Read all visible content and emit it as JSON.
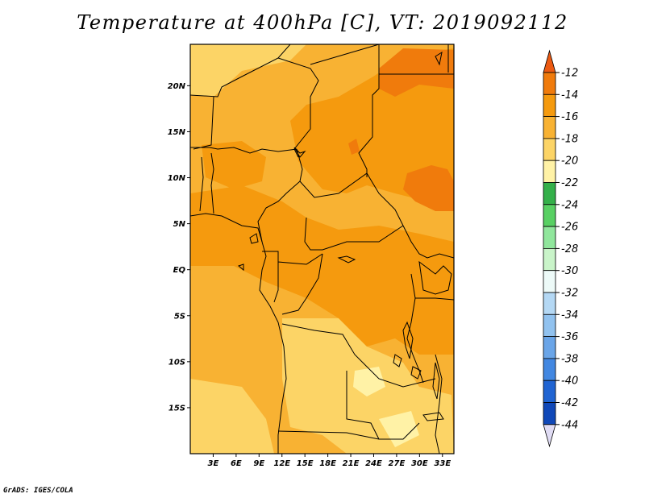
{
  "title": "Temperature at 400hPa [C], VT: 2019092112",
  "footer": "GrADS: IGES/COLA",
  "map": {
    "lon_range": [
      0,
      34.5
    ],
    "lat_range": [
      -20,
      24.5
    ],
    "x_ticks": [
      {
        "value": 3,
        "label": "3E"
      },
      {
        "value": 6,
        "label": "6E"
      },
      {
        "value": 9,
        "label": "9E"
      },
      {
        "value": 12,
        "label": "12E"
      },
      {
        "value": 15,
        "label": "15E"
      },
      {
        "value": 18,
        "label": "18E"
      },
      {
        "value": 21,
        "label": "21E"
      },
      {
        "value": 24,
        "label": "24E"
      },
      {
        "value": 27,
        "label": "27E"
      },
      {
        "value": 30,
        "label": "30E"
      },
      {
        "value": 33,
        "label": "33E"
      }
    ],
    "y_ticks": [
      {
        "value": 20,
        "label": "20N"
      },
      {
        "value": 15,
        "label": "15N"
      },
      {
        "value": 10,
        "label": "10N"
      },
      {
        "value": 5,
        "label": "5N"
      },
      {
        "value": 0,
        "label": "EQ"
      },
      {
        "value": -5,
        "label": "5S"
      },
      {
        "value": -10,
        "label": "10S"
      },
      {
        "value": -15,
        "label": "15S"
      }
    ]
  },
  "colorbar": {
    "labels": [
      "-12",
      "-14",
      "-16",
      "-18",
      "-20",
      "-22",
      "-24",
      "-26",
      "-28",
      "-30",
      "-32",
      "-34",
      "-36",
      "-38",
      "-40",
      "-42",
      "-44"
    ],
    "top_color": "#ec5a12",
    "bottom_color": "#e0dcf4",
    "colors": [
      "#f07b0c",
      "#f59a0e",
      "#f8b233",
      "#fcd466",
      "#fff2a6",
      "#34b04a",
      "#58d063",
      "#90e69c",
      "#c9f4c9",
      "#edfaf8",
      "#b4d8f4",
      "#91c2ef",
      "#6aa5e8",
      "#4287e1",
      "#2064d2",
      "#1048b8",
      "#08157a"
    ]
  }
}
